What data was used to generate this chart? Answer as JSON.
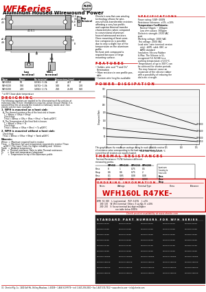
{
  "bg_color": "#ffffff",
  "red_color": "#cc0000",
  "black": "#000000",
  "gray": "#888888",
  "darkgray": "#444444",
  "lightgray": "#cccccc",
  "header_title": "WFH Series",
  "header_sub": "Aluminum Housed Wirewound Power"
}
